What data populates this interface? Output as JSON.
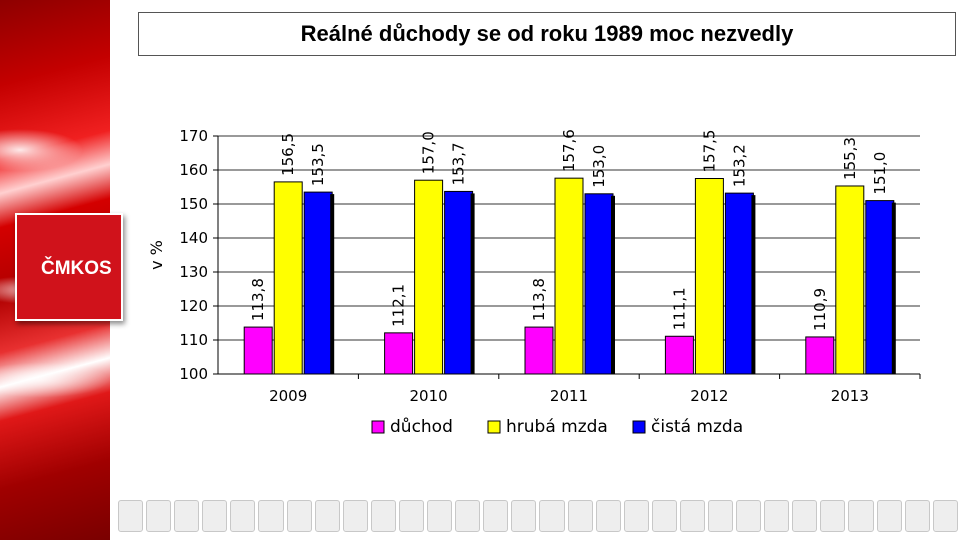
{
  "slide": {
    "title": "Reálné důchody se od roku 1989 moc nezvedly",
    "logo_text": "ČMKOS"
  },
  "chart_data": {
    "type": "bar",
    "categories": [
      "2009",
      "2010",
      "2011",
      "2012",
      "2013"
    ],
    "series": [
      {
        "name": "důchod",
        "color": "#ff00ff",
        "values": [
          113.8,
          112.1,
          113.8,
          111.1,
          110.9
        ],
        "labels": [
          "113,8",
          "112,1",
          "113,8",
          "111,1",
          "110,9"
        ]
      },
      {
        "name": "hrubá mzda",
        "color": "#ffff00",
        "values": [
          156.5,
          157.0,
          157.6,
          157.5,
          155.3
        ],
        "labels": [
          "156,5",
          "157,0",
          "157,6",
          "157,5",
          "155,3"
        ]
      },
      {
        "name": "čistá mzda",
        "color": "#0000ff",
        "values": [
          153.5,
          153.7,
          153.0,
          153.2,
          151.0
        ],
        "labels": [
          "153,5",
          "153,7",
          "153,0",
          "153,2",
          "151,0"
        ]
      }
    ],
    "ylabel": "v %",
    "xlabel": "",
    "ylim": [
      100,
      170
    ],
    "yticks": [
      100,
      110,
      120,
      130,
      140,
      150,
      160,
      170
    ],
    "grid": true,
    "legend_position": "bottom"
  },
  "footer": {
    "logo_count": 30
  }
}
